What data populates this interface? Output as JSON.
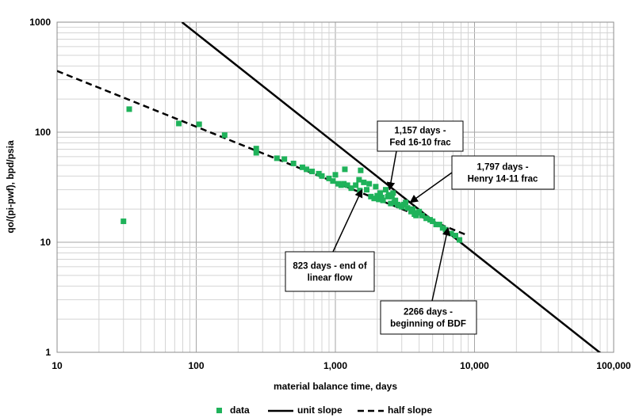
{
  "chart_data": {
    "type": "scatter",
    "xlabel": "material balance time, days",
    "ylabel": "qo/(pi-pwf), bpd/psia",
    "xscale": "log",
    "yscale": "log",
    "xlim": [
      10,
      100000
    ],
    "ylim": [
      1,
      1000
    ],
    "grid": true,
    "x_ticks": [
      {
        "value": 10,
        "label": "10"
      },
      {
        "value": 100,
        "label": "100"
      },
      {
        "value": 1000,
        "label": "1,000"
      },
      {
        "value": 10000,
        "label": "10,000"
      },
      {
        "value": 100000,
        "label": "100,000"
      }
    ],
    "y_ticks": [
      {
        "value": 1,
        "label": "1"
      },
      {
        "value": 10,
        "label": "10"
      },
      {
        "value": 100,
        "label": "100"
      },
      {
        "value": 1000,
        "label": "1000"
      }
    ],
    "series": [
      {
        "name": "data",
        "kind": "points",
        "color": "#1fb25a",
        "points": [
          [
            30,
            15.5
          ],
          [
            33,
            162
          ],
          [
            75,
            120
          ],
          [
            105,
            118
          ],
          [
            160,
            94
          ],
          [
            270,
            71
          ],
          [
            270,
            65
          ],
          [
            380,
            58
          ],
          [
            430,
            57
          ],
          [
            500,
            52
          ],
          [
            580,
            48
          ],
          [
            620,
            46
          ],
          [
            680,
            44
          ],
          [
            760,
            42
          ],
          [
            800,
            40
          ],
          [
            900,
            38
          ],
          [
            960,
            36
          ],
          [
            1000,
            41
          ],
          [
            1050,
            34
          ],
          [
            1100,
            33
          ],
          [
            1150,
            34
          ],
          [
            1170,
            46
          ],
          [
            1220,
            33
          ],
          [
            1300,
            31
          ],
          [
            1400,
            33
          ],
          [
            1480,
            37
          ],
          [
            1500,
            29.5
          ],
          [
            1520,
            45
          ],
          [
            1600,
            35
          ],
          [
            1680,
            30
          ],
          [
            1750,
            34
          ],
          [
            1800,
            26
          ],
          [
            1900,
            25
          ],
          [
            1950,
            32
          ],
          [
            2000,
            26.5
          ],
          [
            2050,
            24.5
          ],
          [
            2100,
            28
          ],
          [
            2150,
            25.5
          ],
          [
            2200,
            24
          ],
          [
            2300,
            30
          ],
          [
            2380,
            26
          ],
          [
            2420,
            27
          ],
          [
            2500,
            22.5
          ],
          [
            2550,
            26
          ],
          [
            2600,
            28
          ],
          [
            2650,
            23
          ],
          [
            2700,
            24
          ],
          [
            2800,
            22
          ],
          [
            2900,
            21.5
          ],
          [
            3000,
            21
          ],
          [
            3100,
            22
          ],
          [
            3200,
            23
          ],
          [
            3300,
            20.5
          ],
          [
            3500,
            19
          ],
          [
            3600,
            20
          ],
          [
            3700,
            18
          ],
          [
            3800,
            17.5
          ],
          [
            3900,
            18.5
          ],
          [
            4000,
            19
          ],
          [
            4200,
            17.5
          ],
          [
            4500,
            16.5
          ],
          [
            4800,
            16
          ],
          [
            5000,
            15.5
          ],
          [
            5300,
            14.5
          ],
          [
            5600,
            14.5
          ],
          [
            5900,
            13.5
          ],
          [
            6200,
            13
          ],
          [
            6800,
            12
          ],
          [
            7300,
            11.5
          ],
          [
            7800,
            10.5
          ]
        ]
      },
      {
        "name": "unit slope",
        "kind": "line",
        "dash": "solid",
        "color": "#000000",
        "points": [
          [
            79,
            1000
          ],
          [
            86000,
            0.92
          ]
        ]
      },
      {
        "name": "half slope",
        "kind": "line",
        "dash": "dashed",
        "color": "#000000",
        "points": [
          [
            10,
            360
          ],
          [
            9000,
            11.5
          ]
        ]
      }
    ],
    "annotations": [
      {
        "lines": [
          "1,157 days -",
          "Fed 16-10 frac"
        ],
        "arrow_to": [
          2450,
          30
        ]
      },
      {
        "lines": [
          "1,797 days -",
          "Henry 14-11 frac"
        ],
        "arrow_to": [
          3450,
          23
        ]
      },
      {
        "lines": [
          "823 days - end of",
          "linear flow"
        ],
        "arrow_to": [
          1550,
          30
        ]
      },
      {
        "lines": [
          "2266 days -",
          "beginning of BDF"
        ],
        "arrow_to": [
          6450,
          13.5
        ]
      }
    ],
    "legend": {
      "position": "bottom",
      "items": [
        {
          "label": "data",
          "marker": "square"
        },
        {
          "label": "unit slope",
          "marker": "solid-line"
        },
        {
          "label": "half slope",
          "marker": "dashed-line"
        }
      ]
    }
  }
}
